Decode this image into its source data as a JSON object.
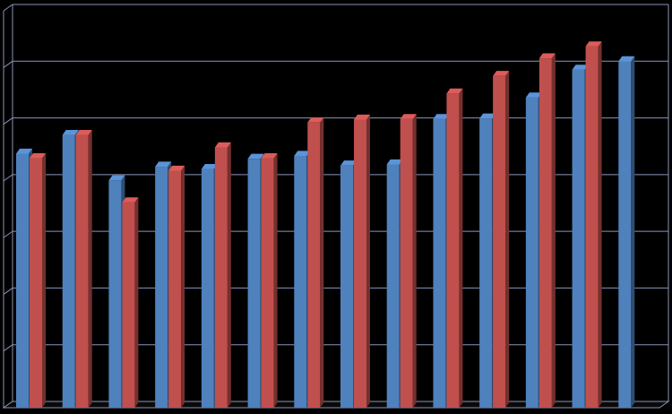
{
  "chart_data": {
    "type": "bar",
    "style": "3d-clustered",
    "categories": [
      "",
      "",
      "",
      "",
      "",
      "",
      "",
      "",
      "",
      "",
      "",
      "",
      "",
      ""
    ],
    "series": [
      {
        "color": "#4F81BD",
        "values": [
          4.48,
          4.81,
          4.01,
          4.25,
          4.21,
          4.39,
          4.44,
          4.27,
          4.29,
          5.09,
          5.1,
          5.47,
          5.96,
          6.11
        ]
      },
      {
        "color": "#C0504D",
        "values": [
          4.4,
          4.81,
          3.62,
          4.18,
          4.59,
          4.4,
          5.03,
          5.08,
          5.09,
          5.54,
          5.85,
          6.16,
          6.37,
          null
        ]
      }
    ],
    "ylim": [
      0,
      7
    ],
    "grid": true,
    "legend": "none",
    "background": "#000000",
    "gridline_color": "#8A94B8"
  }
}
